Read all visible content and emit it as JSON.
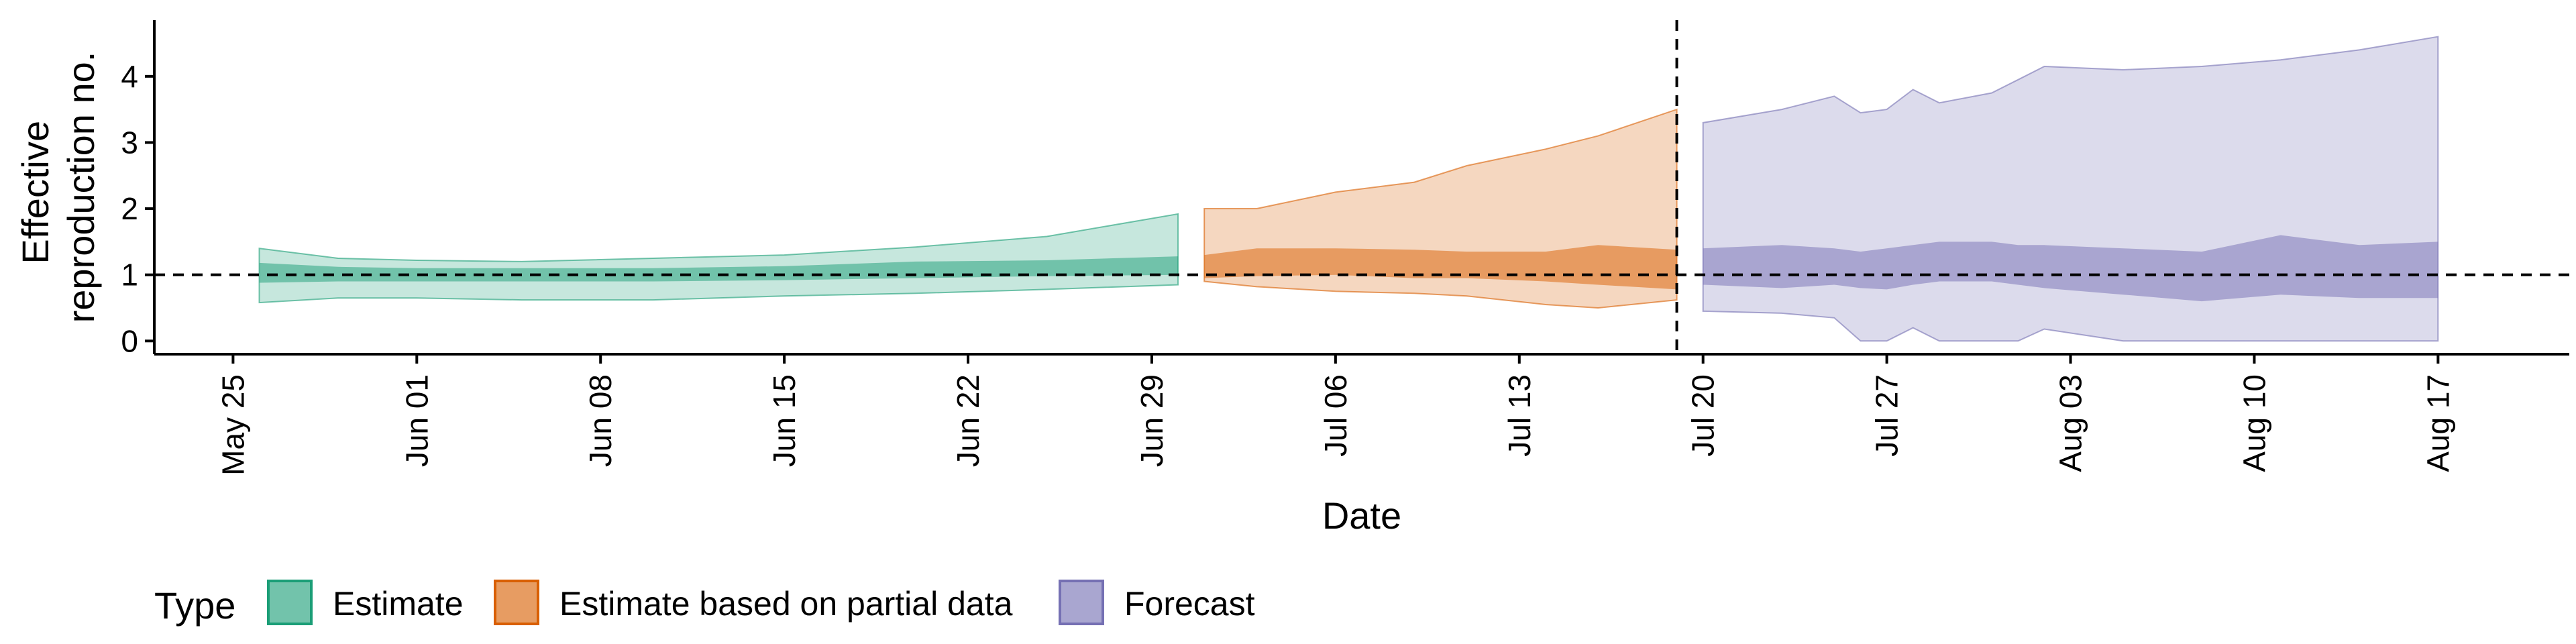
{
  "chart_data": {
    "type": "area",
    "xlabel": "Date",
    "ylabel_lines": [
      "Effective",
      "reproduction no."
    ],
    "ylim": [
      -0.2,
      4.85
    ],
    "y_ticks": [
      0,
      1,
      2,
      3,
      4
    ],
    "x_ticks": [
      "2020-05-25",
      "2020-06-01",
      "2020-06-08",
      "2020-06-15",
      "2020-06-22",
      "2020-06-29",
      "2020-07-06",
      "2020-07-13",
      "2020-07-20",
      "2020-07-27",
      "2020-08-03",
      "2020-08-10",
      "2020-08-17"
    ],
    "x_tick_labels": [
      "May 25",
      "Jun 01",
      "Jun 08",
      "Jun 15",
      "Jun 22",
      "Jun 29",
      "Jul 06",
      "Jul 13",
      "Jul 20",
      "Jul 27",
      "Aug 03",
      "Aug 10",
      "Aug 17"
    ],
    "xlim": [
      "2020-05-22",
      "2020-08-22"
    ],
    "reference_line": {
      "y": 1,
      "style": "dashed"
    },
    "forecast_date_line": {
      "x": "2020-07-19",
      "style": "dashed"
    },
    "legend": {
      "title": "Type",
      "position": "bottom",
      "items": [
        "Estimate",
        "Estimate based on partial data",
        "Forecast"
      ]
    },
    "series": [
      {
        "name": "Estimate",
        "fill_color": "#1b9e77",
        "x": [
          "2020-05-26",
          "2020-05-29",
          "2020-06-01",
          "2020-06-05",
          "2020-06-10",
          "2020-06-15",
          "2020-06-20",
          "2020-06-25",
          "2020-06-30"
        ],
        "outer_upper": [
          1.4,
          1.25,
          1.22,
          1.2,
          1.25,
          1.3,
          1.42,
          1.58,
          1.92
        ],
        "outer_lower": [
          0.58,
          0.65,
          0.65,
          0.62,
          0.62,
          0.68,
          0.72,
          0.78,
          0.85
        ],
        "inner_upper": [
          1.18,
          1.12,
          1.1,
          1.1,
          1.1,
          1.13,
          1.2,
          1.22,
          1.28
        ],
        "inner_lower": [
          0.88,
          0.9,
          0.9,
          0.9,
          0.9,
          0.92,
          0.95,
          0.98,
          1.0
        ]
      },
      {
        "name": "Estimate based on partial data",
        "fill_color": "#d95f02",
        "x": [
          "2020-07-01",
          "2020-07-03",
          "2020-07-06",
          "2020-07-09",
          "2020-07-11",
          "2020-07-14",
          "2020-07-16",
          "2020-07-19"
        ],
        "outer_upper": [
          2.0,
          2.0,
          2.25,
          2.4,
          2.65,
          2.9,
          3.1,
          3.5
        ],
        "outer_lower": [
          0.9,
          0.82,
          0.75,
          0.72,
          0.68,
          0.55,
          0.5,
          0.62
        ],
        "inner_upper": [
          1.3,
          1.4,
          1.4,
          1.38,
          1.35,
          1.35,
          1.45,
          1.38
        ],
        "inner_lower": [
          0.95,
          0.98,
          1.0,
          0.95,
          0.95,
          0.9,
          0.85,
          0.78
        ]
      },
      {
        "name": "Forecast",
        "fill_color": "#7570b3",
        "x": [
          "2020-07-20",
          "2020-07-23",
          "2020-07-25",
          "2020-07-26",
          "2020-07-27",
          "2020-07-28",
          "2020-07-29",
          "2020-07-31",
          "2020-08-01",
          "2020-08-02",
          "2020-08-05",
          "2020-08-08",
          "2020-08-11",
          "2020-08-14",
          "2020-08-17"
        ],
        "outer_upper": [
          3.3,
          3.5,
          3.7,
          3.45,
          3.5,
          3.8,
          3.6,
          3.75,
          3.95,
          4.15,
          4.1,
          4.15,
          4.25,
          4.4,
          4.6
        ],
        "outer_lower": [
          0.45,
          0.42,
          0.35,
          0.0,
          0.0,
          0.2,
          0.0,
          0.0,
          0.0,
          0.18,
          0.0,
          0.0,
          0.0,
          0.0,
          0.0
        ],
        "inner_upper": [
          1.4,
          1.45,
          1.4,
          1.35,
          1.4,
          1.45,
          1.5,
          1.5,
          1.45,
          1.45,
          1.4,
          1.35,
          1.6,
          1.45,
          1.5
        ],
        "inner_lower": [
          0.85,
          0.8,
          0.85,
          0.8,
          0.78,
          0.85,
          0.9,
          0.9,
          0.85,
          0.8,
          0.7,
          0.6,
          0.7,
          0.65,
          0.65
        ]
      }
    ]
  }
}
